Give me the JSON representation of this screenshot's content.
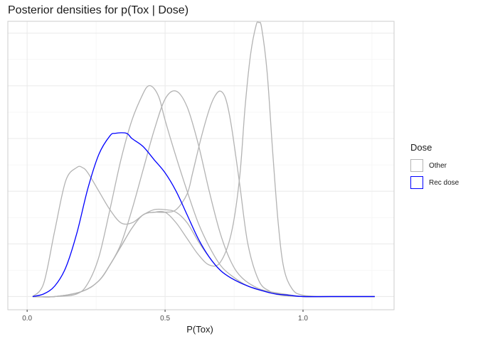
{
  "chart_data": {
    "type": "line",
    "title": "Posterior densities for p(Tox | Dose)",
    "xlabel": "P(Tox)",
    "ylabel": "",
    "xlim": [
      -0.07,
      1.33
    ],
    "ylim": [
      -0.05,
      1.045
    ],
    "x_ticks": [
      "0.0",
      "0.5",
      "1.0"
    ],
    "x_tick_values": [
      0,
      0.5,
      1
    ],
    "grid": true,
    "legend": {
      "title": "Dose",
      "placement": "right",
      "entries": [
        {
          "label": "Other",
          "color": "#b3b3b3"
        },
        {
          "label": "Rec dose",
          "color": "#0000ff"
        }
      ]
    },
    "series": [
      {
        "legend": "Other",
        "color": "#b3b3b3",
        "x": [
          0.02,
          0.06,
          0.1,
          0.14,
          0.18,
          0.2,
          0.22,
          0.26,
          0.3,
          0.34,
          0.38,
          0.42,
          0.46,
          0.5,
          0.54,
          0.58,
          0.62,
          0.66,
          0.7,
          0.74,
          0.8,
          0.86,
          0.9,
          0.95,
          1.0,
          1.1,
          1.26
        ],
        "y": [
          0.0,
          0.05,
          0.25,
          0.44,
          0.49,
          0.49,
          0.47,
          0.4,
          0.33,
          0.28,
          0.28,
          0.31,
          0.33,
          0.33,
          0.32,
          0.28,
          0.21,
          0.15,
          0.1,
          0.07,
          0.04,
          0.02,
          0.01,
          0.005,
          0.0,
          0.0,
          0.0
        ]
      },
      {
        "legend": "Other",
        "color": "#b3b3b3",
        "x": [
          0.02,
          0.1,
          0.18,
          0.22,
          0.26,
          0.3,
          0.34,
          0.38,
          0.42,
          0.44,
          0.46,
          0.48,
          0.5,
          0.54,
          0.58,
          0.62,
          0.66,
          0.7,
          0.74,
          0.8,
          0.86,
          0.92,
          1.0,
          1.1,
          1.26
        ],
        "y": [
          0.0,
          0.0,
          0.01,
          0.05,
          0.15,
          0.33,
          0.52,
          0.67,
          0.77,
          0.8,
          0.79,
          0.75,
          0.67,
          0.53,
          0.4,
          0.28,
          0.19,
          0.12,
          0.08,
          0.04,
          0.02,
          0.01,
          0.0,
          0.0,
          0.0
        ]
      },
      {
        "legend": "Other",
        "color": "#b3b3b3",
        "x": [
          0.02,
          0.1,
          0.2,
          0.26,
          0.3,
          0.34,
          0.38,
          0.42,
          0.46,
          0.5,
          0.54,
          0.58,
          0.62,
          0.66,
          0.7,
          0.74,
          0.78,
          0.84,
          0.9,
          0.96,
          1.0,
          1.1,
          1.26
        ],
        "y": [
          0.0,
          0.0,
          0.02,
          0.06,
          0.12,
          0.2,
          0.33,
          0.48,
          0.63,
          0.75,
          0.78,
          0.72,
          0.58,
          0.4,
          0.24,
          0.13,
          0.07,
          0.03,
          0.015,
          0.005,
          0.0,
          0.0,
          0.0
        ]
      },
      {
        "legend": "Other",
        "color": "#b3b3b3",
        "x": [
          0.02,
          0.1,
          0.2,
          0.26,
          0.3,
          0.34,
          0.38,
          0.42,
          0.46,
          0.5,
          0.54,
          0.58,
          0.6,
          0.63,
          0.66,
          0.68,
          0.7,
          0.72,
          0.74,
          0.77,
          0.8,
          0.84,
          0.88,
          0.92,
          1.0,
          1.1,
          1.26
        ],
        "y": [
          0.0,
          0.0,
          0.02,
          0.06,
          0.12,
          0.19,
          0.26,
          0.31,
          0.32,
          0.32,
          0.33,
          0.39,
          0.47,
          0.6,
          0.71,
          0.76,
          0.78,
          0.75,
          0.65,
          0.43,
          0.2,
          0.06,
          0.02,
          0.005,
          0.0,
          0.0,
          0.0
        ]
      },
      {
        "legend": "Other",
        "color": "#b3b3b3",
        "x": [
          0.02,
          0.1,
          0.2,
          0.26,
          0.3,
          0.34,
          0.38,
          0.42,
          0.46,
          0.5,
          0.54,
          0.58,
          0.62,
          0.66,
          0.7,
          0.74,
          0.77,
          0.79,
          0.81,
          0.83,
          0.84,
          0.85,
          0.87,
          0.89,
          0.91,
          0.93,
          0.96,
          1.0,
          1.1,
          1.26
        ],
        "y": [
          0.0,
          0.0,
          0.02,
          0.06,
          0.12,
          0.19,
          0.26,
          0.31,
          0.32,
          0.32,
          0.28,
          0.22,
          0.16,
          0.12,
          0.13,
          0.24,
          0.45,
          0.72,
          0.92,
          1.03,
          1.04,
          1.02,
          0.85,
          0.55,
          0.28,
          0.11,
          0.03,
          0.005,
          0.0,
          0.0
        ]
      },
      {
        "legend": "Rec dose",
        "color": "#0000ff",
        "x": [
          0.02,
          0.06,
          0.1,
          0.14,
          0.18,
          0.22,
          0.26,
          0.3,
          0.32,
          0.36,
          0.38,
          0.42,
          0.46,
          0.5,
          0.54,
          0.58,
          0.62,
          0.66,
          0.7,
          0.74,
          0.8,
          0.86,
          0.9,
          0.95,
          1.0,
          1.1,
          1.26
        ],
        "y": [
          0.0,
          0.01,
          0.04,
          0.11,
          0.24,
          0.41,
          0.54,
          0.61,
          0.62,
          0.62,
          0.6,
          0.57,
          0.52,
          0.47,
          0.4,
          0.31,
          0.22,
          0.15,
          0.1,
          0.07,
          0.04,
          0.02,
          0.01,
          0.005,
          0.0,
          0.0,
          0.0
        ]
      }
    ]
  }
}
